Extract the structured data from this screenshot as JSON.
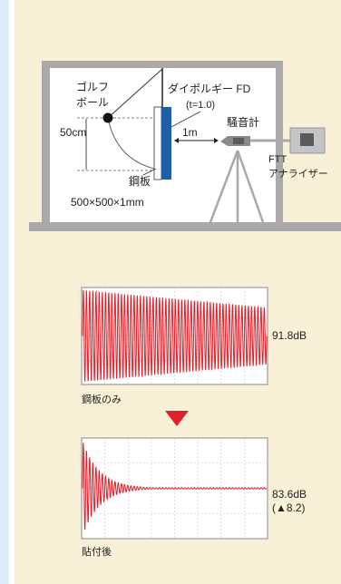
{
  "diagram": {
    "golf_ball_line1": "ゴルフ",
    "golf_ball_line2": "ボール",
    "damping_line1": "ダイポルギー FD",
    "damping_line2": "(t=1.0)",
    "distance": "1m",
    "drop_height": "50cm",
    "sound_meter": "騒音計",
    "analyzer_line1": "FTT",
    "analyzer_line2": "アナライザー",
    "plate": "鋼板",
    "plate_size": "500×500×1mm"
  },
  "charts": {
    "before": {
      "label": "鋼板のみ",
      "level": "91.8dB"
    },
    "after": {
      "label": "貼付後",
      "level": "83.6dB",
      "reduction": "(▲8.2)"
    }
  },
  "colors": {
    "panel": "#f8f1d8",
    "plate_blue": "#1f5fa8",
    "wave_red": "#e0202a",
    "structure_gray": "#a9a9a9"
  }
}
